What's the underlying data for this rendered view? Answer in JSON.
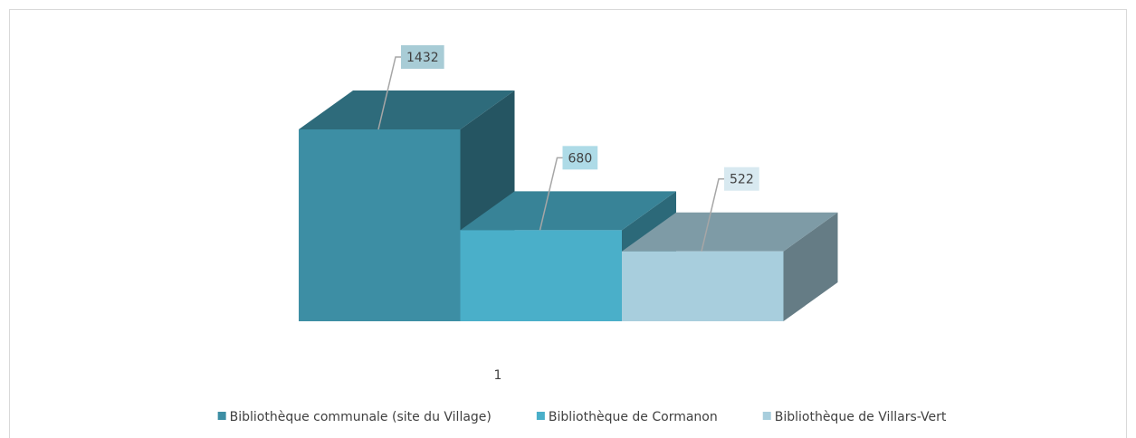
{
  "chart_data": {
    "type": "bar",
    "categories": [
      "1"
    ],
    "series": [
      {
        "name": "Bibliothèque communale (site du Village)",
        "color": "#3d8ea4",
        "values": [
          1432
        ]
      },
      {
        "name": "Bibliothèque de Cormanon",
        "color": "#4aafc9",
        "values": [
          680
        ]
      },
      {
        "name": "Bibliothèque de Villars-Vert",
        "color": "#a8cedd",
        "values": [
          522
        ]
      }
    ],
    "legend": "bottom"
  }
}
